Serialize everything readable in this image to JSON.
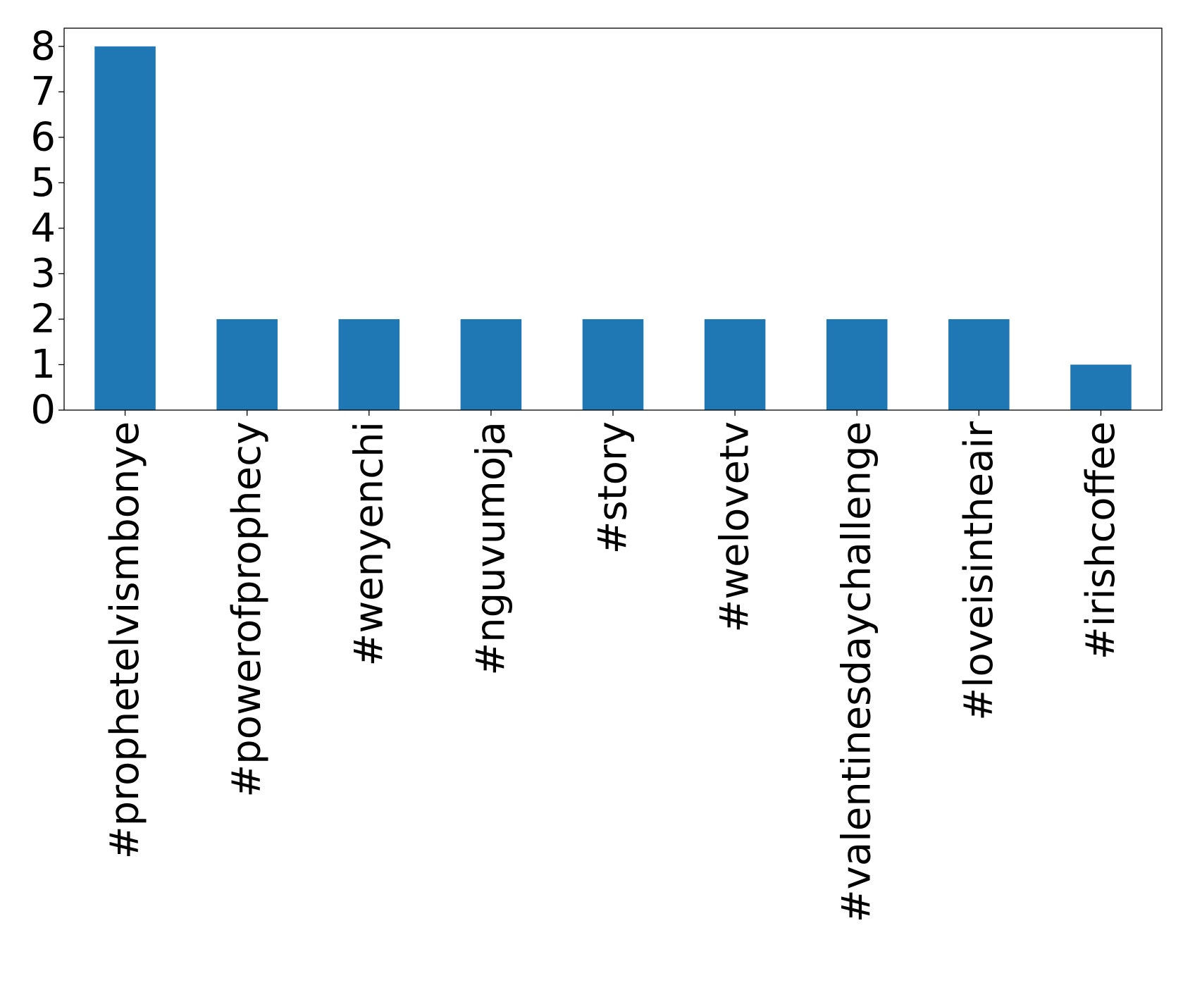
{
  "chart_data": {
    "type": "bar",
    "categories": [
      "#prophetelvismbonye",
      "#powerofprophecy",
      "#wenyenchi",
      "#nguvumoja",
      "#story",
      "#welovetv",
      "#valentinesdaychallenge",
      "#loveisintheair",
      "#irishcoffee"
    ],
    "values": [
      8,
      2,
      2,
      2,
      2,
      2,
      2,
      2,
      1
    ],
    "title": "",
    "xlabel": "",
    "ylabel": "",
    "ylim": [
      0,
      8.4
    ],
    "yticks": [
      "0",
      "1",
      "2",
      "3",
      "4",
      "5",
      "6",
      "7",
      "8"
    ],
    "grid": false,
    "legend": "none",
    "colors": {
      "bar": "#1f77b4",
      "axis": "#000000",
      "background": "#ffffff"
    }
  }
}
